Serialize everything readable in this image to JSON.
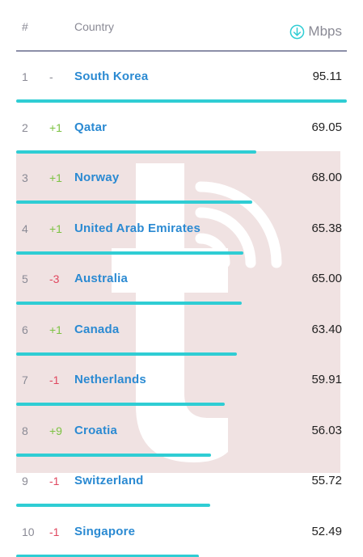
{
  "header": {
    "rank_label": "#",
    "country_label": "Country",
    "speed_label": "Mbps",
    "speed_icon": "download-arrow-icon"
  },
  "colors": {
    "accent": "#2fcdd4",
    "country_link": "#2b8ad2",
    "up": "#7cc243",
    "down": "#e0475f",
    "neutral": "#8a8a95",
    "watermark_bg": "#f0e2e2"
  },
  "rows": [
    {
      "rank": "1",
      "change": "-",
      "trend": "neutral",
      "country": "South Korea",
      "speed": "95.11",
      "fraction": 1.0
    },
    {
      "rank": "2",
      "change": "+1",
      "trend": "up",
      "country": "Qatar",
      "speed": "69.05",
      "fraction": 0.726
    },
    {
      "rank": "3",
      "change": "+1",
      "trend": "up",
      "country": "Norway",
      "speed": "68.00",
      "fraction": 0.715
    },
    {
      "rank": "4",
      "change": "+1",
      "trend": "up",
      "country": "United Arab Emirates",
      "speed": "65.38",
      "fraction": 0.687
    },
    {
      "rank": "5",
      "change": "-3",
      "trend": "down",
      "country": "Australia",
      "speed": "65.00",
      "fraction": 0.683
    },
    {
      "rank": "6",
      "change": "+1",
      "trend": "up",
      "country": "Canada",
      "speed": "63.40",
      "fraction": 0.667
    },
    {
      "rank": "7",
      "change": "-1",
      "trend": "down",
      "country": "Netherlands",
      "speed": "59.91",
      "fraction": 0.63
    },
    {
      "rank": "8",
      "change": "+9",
      "trend": "up",
      "country": "Croatia",
      "speed": "56.03",
      "fraction": 0.589
    },
    {
      "rank": "9",
      "change": "-1",
      "trend": "down",
      "country": "Switzerland",
      "speed": "55.72",
      "fraction": 0.586
    },
    {
      "rank": "10",
      "change": "-1",
      "trend": "down",
      "country": "Singapore",
      "speed": "52.49",
      "fraction": 0.552
    }
  ]
}
